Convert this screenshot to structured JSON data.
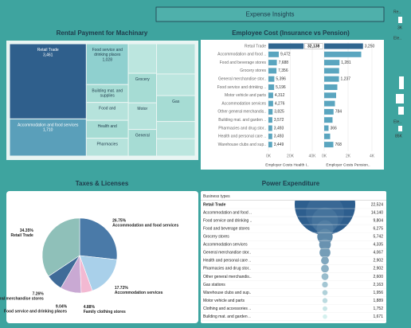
{
  "title": "Expense Insights",
  "sidebar": [
    "Re..",
    "3K",
    "Ele..",
    "Ele..",
    "85K"
  ],
  "chart_data": [
    {
      "type": "treemap",
      "title": "Rental Payment for Machinary",
      "categories": [
        "Retail Trade",
        "Accommodation and food services",
        "Food service and drinking places",
        "Building mat. and supplies",
        "Food and",
        "Health and",
        "Pharmacies",
        null,
        "Grocery",
        "Motor",
        "General",
        null,
        null,
        "Gas",
        null,
        null
      ],
      "values": [
        3461,
        1710,
        1028,
        450,
        450,
        450,
        450,
        500,
        500,
        450,
        450,
        700,
        500,
        600,
        400,
        400
      ],
      "value_labels": [
        "3,461",
        "1,710",
        "1,028",
        null,
        null,
        null,
        null,
        null,
        null,
        null,
        null,
        null,
        null,
        null,
        null,
        null
      ],
      "colors": [
        "#2f5f8c",
        "#5a9fba",
        "#8fd0cf",
        "#a6dcd4",
        "#b6e3dc",
        "#a6dcd4",
        "#b6e3dc",
        "#bce6df",
        "#a6dcd4",
        "#b6e3dc",
        "#a6dcd4",
        "#b6e3dc",
        "#bce6df",
        "#a6dcd4",
        "#b6e3dc",
        "#bce6df"
      ]
    },
    {
      "type": "dual-bar",
      "title": "Employee Cost (Insurance vs Pension)",
      "categories": [
        "Retail Trade",
        "Accommodation and food ..",
        "Food and beverage stores",
        "Grocery stores",
        "General merchandise stor..",
        "Food service and drinking ..",
        "Motor vehicle and parts",
        "Accommodation services",
        "Other general merchandis..",
        "Building mat. and garden ..",
        "Pharmacies and drug stor..",
        "Health and personal care ..",
        "Warehouse clubs and sup.."
      ],
      "series": [
        {
          "name": "Employer Costs Health I..",
          "color": "#5aa5bf",
          "highlight": "#2f6690",
          "values": [
            32138,
            9472,
            7688,
            7356,
            5396,
            5196,
            4312,
            4276,
            3825,
            3572,
            3493,
            3493,
            3449
          ],
          "value_labels": [
            "32,138",
            "9,472",
            "7,688",
            "7,356",
            "5,396",
            "5,196",
            "4,312",
            "4,276",
            "3,825",
            "3,572",
            "3,493",
            "3,493",
            "3,449"
          ]
        },
        {
          "name": "Employer Costs Pension..",
          "axis": "x2",
          "color": "#5aa5bf",
          "highlight": "#2f6690",
          "values": [
            3250,
            3100,
            1281,
            1250,
            1237,
            1100,
            1000,
            900,
            784,
            700,
            366,
            500,
            768
          ],
          "value_labels": [
            "3,250",
            null,
            "1,281",
            null,
            "1,237",
            null,
            null,
            null,
            "784",
            null,
            "366",
            null,
            "768"
          ]
        }
      ],
      "xlim": [
        0,
        40000
      ],
      "xticks": [
        {
          "value": 0,
          "label": "0K"
        },
        {
          "value": 20000,
          "label": "20K"
        },
        {
          "value": 40000,
          "label": "40K"
        }
      ],
      "x2lim": [
        0,
        4000
      ],
      "x2ticks": [
        {
          "value": 0,
          "label": "0K"
        },
        {
          "value": 2000,
          "label": "2K"
        },
        {
          "value": 4000,
          "label": "4K"
        }
      ],
      "grid": true
    },
    {
      "type": "pie",
      "title": "Taxes & Licenses",
      "categories": [
        "Accommodation and food services",
        "Accommodation services",
        "Family clothing stores",
        "Food service and drinking places",
        "General merchandise stores",
        "Retail Trade"
      ],
      "values": [
        26.75,
        17.72,
        4.88,
        9.04,
        7.26,
        34.35
      ],
      "value_labels": [
        "26.75%",
        "17.72%",
        "4.88%",
        "9.04%",
        "7.26%",
        "34.35%"
      ],
      "colors": [
        "#4a7aa8",
        "#a9d0ea",
        "#f3b9d2",
        "#c9a9d3",
        "#3f6b98",
        "#8fc0b9"
      ]
    },
    {
      "type": "funnel-table",
      "title": "Power Expenditure",
      "header": "Business types",
      "categories": [
        "Retail Trade",
        "Accommodation and food ..",
        "Food service and drinking ..",
        "Food and beverage stores",
        "Grocery stores",
        "Accommodation services",
        "General merchandise stor..",
        "Health and personal care ..",
        "Pharmacies and drug stor..",
        "Other general merchandis..",
        "Gas stations",
        "Warehouse clubs and sup..",
        "Motor vehicle and parts",
        "Clothing and accessories ..",
        "Building mat. and garden .."
      ],
      "values": [
        22524,
        14140,
        9804,
        6275,
        5742,
        4335,
        4067,
        2902,
        2902,
        2600,
        2163,
        1956,
        1889,
        1752,
        1671
      ],
      "value_labels": [
        "22,524",
        "14,140",
        "9,804",
        "6,275",
        "5,742",
        "4,335",
        "4,067",
        "2,902",
        "2,902",
        "2,600",
        "2,163",
        "1,956",
        "1,889",
        "1,752",
        "1,671"
      ],
      "color_range": [
        "#2d5e8e",
        "#d4f0ee"
      ]
    }
  ]
}
